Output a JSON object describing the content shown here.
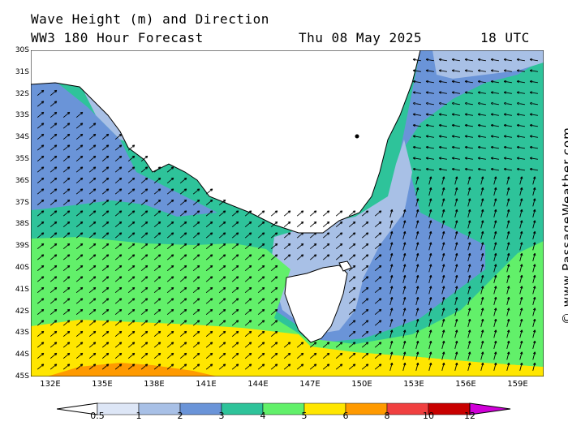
{
  "header": {
    "title": "Wave Height (m) and Direction",
    "model": "WW3 180 Hour Forecast",
    "date": "Thu 08 May 2025",
    "time": "18 UTC"
  },
  "credit": "© www.PassageWeather.com",
  "latitudes": [
    "30S",
    "31S",
    "32S",
    "33S",
    "34S",
    "35S",
    "36S",
    "37S",
    "38S",
    "39S",
    "40S",
    "41S",
    "42S",
    "43S",
    "44S",
    "45S"
  ],
  "longitudes": [
    "132E",
    "135E",
    "138E",
    "141E",
    "144E",
    "147E",
    "150E",
    "153E",
    "156E",
    "159E"
  ],
  "legend": {
    "labels": [
      "0.5",
      "1",
      "2",
      "3",
      "4",
      "5",
      "6",
      "8",
      "10",
      "12"
    ],
    "colors": [
      "#ffffff",
      "#dde6f6",
      "#a8c0e6",
      "#6a94d8",
      "#2ec39a",
      "#62f06a",
      "#ffe600",
      "#ff9a00",
      "#f04040",
      "#c80000",
      "#d000d8"
    ]
  }
}
